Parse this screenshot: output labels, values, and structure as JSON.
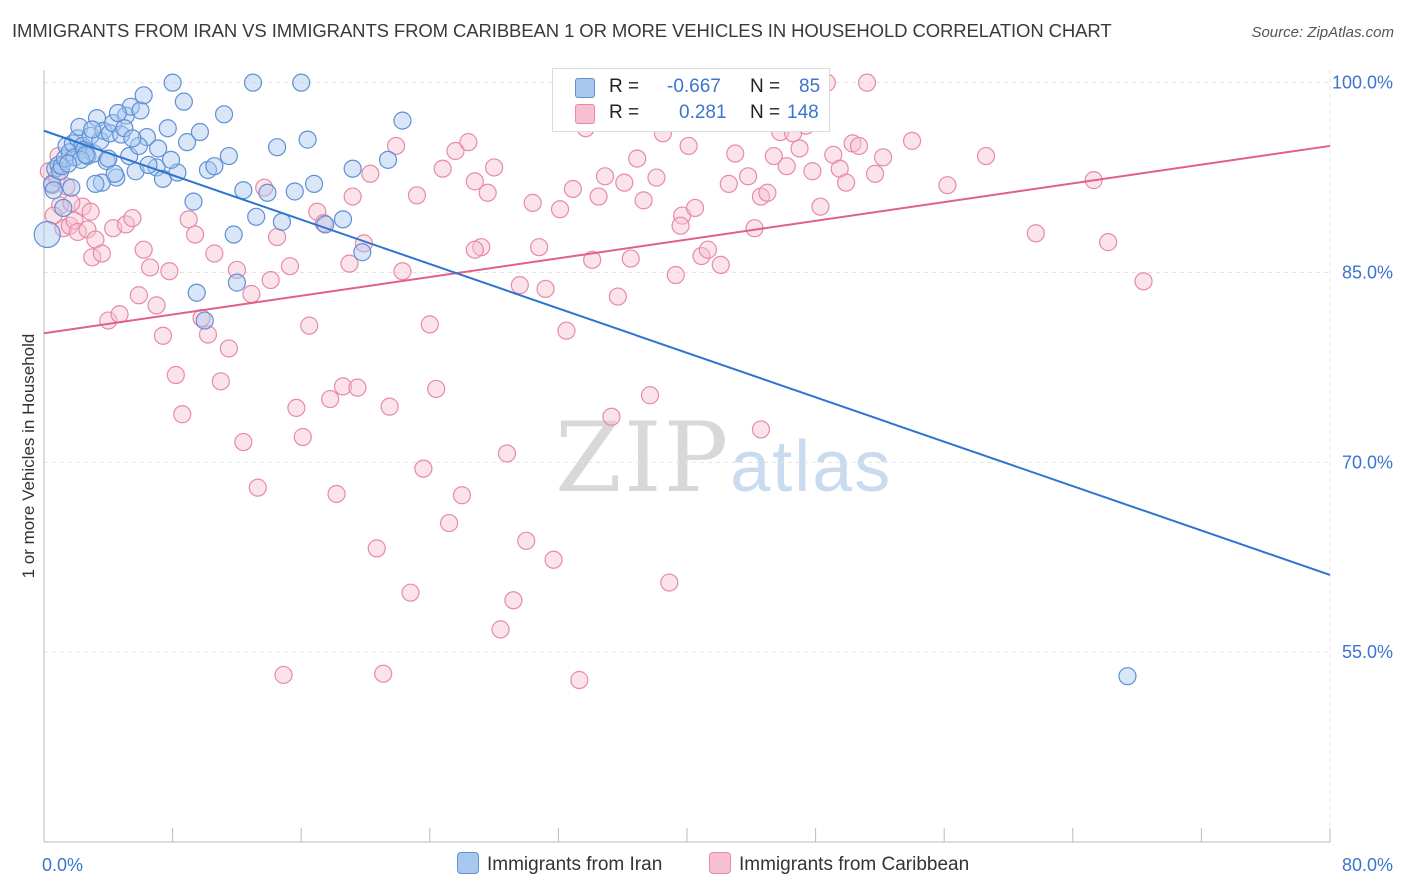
{
  "title": "IMMIGRANTS FROM IRAN VS IMMIGRANTS FROM CARIBBEAN 1 OR MORE VEHICLES IN HOUSEHOLD CORRELATION CHART",
  "source": "Source: ZipAtlas.com",
  "watermark": {
    "zip": "ZIP",
    "atlas": "atlas"
  },
  "legend": {
    "iran": {
      "r_label": "R =",
      "r_value": "-0.667",
      "n_label": "N =",
      "n_value": "85"
    },
    "caribbean": {
      "r_label": "R =",
      "r_value": "0.281",
      "n_label": "N =",
      "n_value": "148"
    }
  },
  "bottom_legend": {
    "iran": "Immigrants from Iran",
    "caribbean": "Immigrants from Caribbean"
  },
  "colors": {
    "iran_fill": "#a9c8f0",
    "iran_stroke": "#5f90d6",
    "iran_line": "#2f74d0",
    "carib_fill": "#f6c0d0",
    "carib_stroke": "#e88aa8",
    "carib_line": "#e0608a",
    "tick_label": "#3b74d0",
    "grid": "#e3e3e3"
  },
  "chart_data": {
    "type": "scatter",
    "title": "IMMIGRANTS FROM IRAN VS IMMIGRANTS FROM CARIBBEAN 1 OR MORE VEHICLES IN HOUSEHOLD CORRELATION CHART",
    "xlabel": "",
    "ylabel": "1 or more Vehicles in Household",
    "xlim": [
      0,
      80
    ],
    "ylim": [
      40,
      101
    ],
    "x_tick_labels": [
      {
        "value": 0,
        "label": "0.0%"
      },
      {
        "value": 80,
        "label": "80.0%"
      }
    ],
    "y_tick_labels": [
      {
        "value": 100,
        "label": "100.0%"
      },
      {
        "value": 85,
        "label": "85.0%"
      },
      {
        "value": 70,
        "label": "70.0%"
      },
      {
        "value": 55,
        "label": "55.0%"
      }
    ],
    "series": [
      {
        "name": "Immigrants from Iran",
        "R": -0.667,
        "N": 85,
        "trend": {
          "x": [
            0,
            80
          ],
          "y": [
            96.2,
            61.1
          ]
        },
        "points": [
          [
            0.2,
            88.0
          ],
          [
            0.5,
            92.0
          ],
          [
            0.6,
            91.5
          ],
          [
            0.7,
            93.2
          ],
          [
            0.9,
            93.5
          ],
          [
            1.0,
            93.0
          ],
          [
            1.1,
            93.4
          ],
          [
            1.3,
            94.0
          ],
          [
            1.4,
            95.0
          ],
          [
            1.6,
            94.5
          ],
          [
            1.8,
            95.2
          ],
          [
            1.9,
            94.1
          ],
          [
            2.1,
            95.6
          ],
          [
            2.2,
            96.5
          ],
          [
            2.4,
            95.0
          ],
          [
            2.5,
            94.7
          ],
          [
            2.7,
            94.2
          ],
          [
            2.9,
            95.8
          ],
          [
            3.1,
            94.4
          ],
          [
            3.3,
            97.2
          ],
          [
            3.5,
            95.4
          ],
          [
            3.7,
            96.2
          ],
          [
            3.9,
            93.8
          ],
          [
            4.1,
            96.0
          ],
          [
            4.3,
            96.8
          ],
          [
            4.5,
            92.5
          ],
          [
            4.8,
            95.9
          ],
          [
            5.1,
            97.4
          ],
          [
            5.4,
            98.1
          ],
          [
            5.7,
            93.0
          ],
          [
            6.0,
            97.8
          ],
          [
            6.4,
            95.7
          ],
          [
            7.0,
            93.3
          ],
          [
            7.4,
            92.4
          ],
          [
            8.0,
            100.0
          ],
          [
            1.2,
            90.1
          ],
          [
            1.7,
            91.7
          ],
          [
            2.3,
            93.9
          ],
          [
            3.0,
            96.3
          ],
          [
            3.6,
            92.1
          ],
          [
            4.0,
            94.0
          ],
          [
            4.6,
            97.6
          ],
          [
            5.0,
            96.4
          ],
          [
            5.3,
            94.2
          ],
          [
            5.9,
            95.0
          ],
          [
            6.5,
            93.5
          ],
          [
            7.1,
            94.8
          ],
          [
            7.7,
            96.4
          ],
          [
            8.3,
            92.9
          ],
          [
            8.9,
            95.3
          ],
          [
            9.3,
            90.6
          ],
          [
            9.7,
            96.1
          ],
          [
            10.2,
            93.1
          ],
          [
            10.6,
            93.4
          ],
          [
            11.2,
            97.5
          ],
          [
            11.8,
            88.0
          ],
          [
            12.4,
            91.5
          ],
          [
            13.2,
            89.4
          ],
          [
            13.9,
            91.3
          ],
          [
            14.8,
            89.0
          ],
          [
            15.6,
            91.4
          ],
          [
            16.4,
            95.5
          ],
          [
            16.8,
            92.0
          ],
          [
            17.5,
            88.8
          ],
          [
            18.6,
            89.2
          ],
          [
            19.2,
            93.2
          ],
          [
            19.8,
            86.6
          ],
          [
            21.4,
            93.9
          ],
          [
            22.3,
            97.0
          ],
          [
            11.5,
            94.2
          ],
          [
            12.0,
            84.2
          ],
          [
            13.0,
            100.0
          ],
          [
            9.5,
            83.4
          ],
          [
            10.0,
            81.2
          ],
          [
            14.5,
            94.9
          ],
          [
            16.0,
            100.0
          ],
          [
            8.7,
            98.5
          ],
          [
            6.2,
            99.0
          ],
          [
            5.5,
            95.6
          ],
          [
            4.4,
            92.8
          ],
          [
            3.2,
            92.0
          ],
          [
            2.6,
            94.3
          ],
          [
            1.5,
            93.6
          ],
          [
            67.4,
            53.1
          ],
          [
            7.9,
            93.9
          ]
        ]
      },
      {
        "name": "Immigrants from Caribbean",
        "R": 0.281,
        "N": 148,
        "trend": {
          "x": [
            0,
            80
          ],
          "y": [
            80.2,
            95.0
          ]
        },
        "points": [
          [
            0.3,
            93.0
          ],
          [
            0.5,
            91.9
          ],
          [
            0.8,
            92.5
          ],
          [
            1.0,
            90.3
          ],
          [
            1.2,
            88.5
          ],
          [
            1.4,
            91.8
          ],
          [
            1.6,
            88.7
          ],
          [
            1.9,
            89.1
          ],
          [
            2.1,
            88.2
          ],
          [
            2.4,
            90.2
          ],
          [
            2.7,
            88.4
          ],
          [
            3.0,
            86.2
          ],
          [
            3.2,
            87.6
          ],
          [
            3.6,
            86.5
          ],
          [
            4.0,
            81.2
          ],
          [
            4.3,
            88.5
          ],
          [
            4.7,
            81.7
          ],
          [
            5.1,
            88.8
          ],
          [
            5.5,
            89.3
          ],
          [
            5.9,
            83.2
          ],
          [
            6.2,
            86.8
          ],
          [
            6.6,
            85.4
          ],
          [
            7.0,
            82.4
          ],
          [
            7.4,
            80.0
          ],
          [
            7.8,
            85.1
          ],
          [
            8.2,
            76.9
          ],
          [
            8.6,
            73.8
          ],
          [
            9.0,
            89.2
          ],
          [
            9.4,
            88.0
          ],
          [
            9.8,
            81.4
          ],
          [
            10.2,
            80.1
          ],
          [
            10.6,
            86.5
          ],
          [
            11.0,
            76.4
          ],
          [
            11.5,
            79.0
          ],
          [
            12.0,
            85.2
          ],
          [
            12.4,
            71.6
          ],
          [
            12.9,
            83.3
          ],
          [
            13.3,
            68.0
          ],
          [
            13.7,
            91.7
          ],
          [
            14.1,
            84.4
          ],
          [
            14.5,
            87.8
          ],
          [
            14.9,
            53.2
          ],
          [
            15.3,
            85.5
          ],
          [
            15.7,
            74.3
          ],
          [
            16.1,
            72.0
          ],
          [
            16.5,
            80.8
          ],
          [
            17.0,
            89.8
          ],
          [
            17.4,
            88.9
          ],
          [
            17.8,
            75.0
          ],
          [
            18.2,
            67.5
          ],
          [
            18.6,
            76.0
          ],
          [
            19.0,
            85.7
          ],
          [
            19.5,
            75.9
          ],
          [
            19.9,
            87.3
          ],
          [
            20.3,
            92.8
          ],
          [
            20.7,
            63.2
          ],
          [
            21.1,
            53.3
          ],
          [
            21.5,
            74.4
          ],
          [
            21.9,
            95.0
          ],
          [
            22.3,
            85.1
          ],
          [
            22.8,
            59.7
          ],
          [
            23.2,
            91.1
          ],
          [
            23.6,
            69.5
          ],
          [
            24.0,
            80.9
          ],
          [
            24.4,
            75.8
          ],
          [
            24.8,
            93.2
          ],
          [
            25.2,
            65.2
          ],
          [
            25.6,
            94.6
          ],
          [
            26.0,
            67.4
          ],
          [
            26.4,
            95.3
          ],
          [
            26.8,
            92.2
          ],
          [
            27.2,
            87.0
          ],
          [
            27.6,
            91.3
          ],
          [
            28.0,
            93.3
          ],
          [
            28.4,
            56.8
          ],
          [
            28.8,
            70.7
          ],
          [
            29.2,
            59.1
          ],
          [
            29.6,
            84.0
          ],
          [
            30.0,
            63.8
          ],
          [
            30.4,
            90.5
          ],
          [
            30.8,
            87.0
          ],
          [
            31.2,
            83.7
          ],
          [
            31.7,
            62.3
          ],
          [
            32.1,
            90.0
          ],
          [
            32.5,
            80.4
          ],
          [
            32.9,
            91.6
          ],
          [
            33.3,
            52.8
          ],
          [
            33.7,
            96.4
          ],
          [
            34.1,
            86.0
          ],
          [
            34.5,
            91.0
          ],
          [
            34.9,
            92.6
          ],
          [
            35.3,
            73.6
          ],
          [
            35.7,
            83.1
          ],
          [
            36.1,
            92.1
          ],
          [
            36.5,
            86.1
          ],
          [
            36.9,
            94.0
          ],
          [
            37.3,
            90.7
          ],
          [
            37.7,
            75.3
          ],
          [
            38.1,
            92.5
          ],
          [
            38.5,
            96.0
          ],
          [
            38.9,
            60.5
          ],
          [
            39.3,
            84.8
          ],
          [
            39.7,
            89.5
          ],
          [
            40.1,
            95.0
          ],
          [
            40.5,
            90.1
          ],
          [
            40.9,
            86.3
          ],
          [
            41.3,
            86.8
          ],
          [
            41.7,
            100.0
          ],
          [
            42.1,
            85.6
          ],
          [
            42.6,
            92.0
          ],
          [
            43.0,
            94.4
          ],
          [
            43.4,
            99.5
          ],
          [
            43.8,
            92.6
          ],
          [
            44.2,
            88.5
          ],
          [
            44.6,
            91.0
          ],
          [
            45.0,
            91.3
          ],
          [
            45.4,
            94.2
          ],
          [
            45.8,
            96.1
          ],
          [
            46.2,
            93.4
          ],
          [
            46.6,
            96.0
          ],
          [
            47.0,
            94.8
          ],
          [
            47.4,
            96.6
          ],
          [
            47.8,
            93.0
          ],
          [
            48.3,
            90.2
          ],
          [
            48.7,
            100.0
          ],
          [
            49.1,
            94.3
          ],
          [
            49.5,
            93.2
          ],
          [
            49.9,
            92.1
          ],
          [
            50.3,
            95.2
          ],
          [
            50.7,
            95.0
          ],
          [
            51.2,
            100.0
          ],
          [
            51.7,
            92.8
          ],
          [
            52.2,
            94.1
          ],
          [
            54.0,
            95.4
          ],
          [
            56.2,
            91.9
          ],
          [
            58.6,
            94.2
          ],
          [
            61.7,
            88.1
          ],
          [
            65.3,
            92.3
          ],
          [
            66.2,
            87.4
          ],
          [
            68.4,
            84.3
          ],
          [
            0.9,
            94.2
          ],
          [
            1.7,
            90.5
          ],
          [
            2.9,
            89.8
          ],
          [
            0.6,
            89.5
          ],
          [
            19.2,
            91.0
          ],
          [
            26.8,
            86.8
          ],
          [
            39.6,
            88.7
          ],
          [
            44.6,
            72.6
          ]
        ]
      }
    ]
  }
}
